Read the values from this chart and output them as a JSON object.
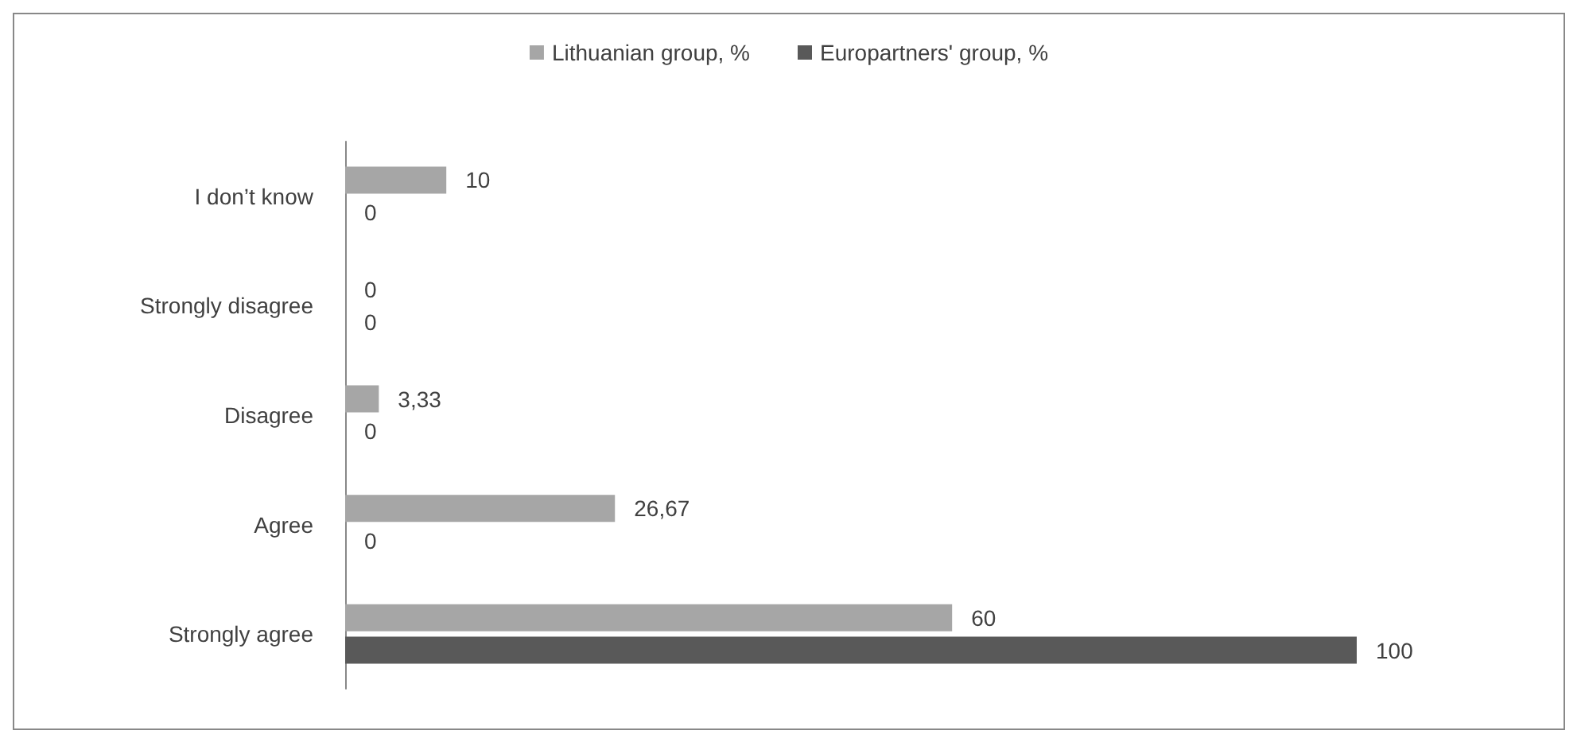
{
  "chart_data": {
    "type": "bar",
    "orientation": "horizontal",
    "categories": [
      "I don’t know",
      "Strongly disagree",
      "Disagree",
      "Agree",
      "Strongly agree"
    ],
    "series": [
      {
        "name": "Lithuanian group, %",
        "color": "#a6a6a6",
        "values": [
          10,
          0,
          3.33,
          26.67,
          60
        ],
        "value_labels": [
          "10",
          "0",
          "3,33",
          "26,67",
          "60"
        ]
      },
      {
        "name": "Europartners' group, %",
        "color": "#595959",
        "values": [
          0,
          0,
          0,
          0,
          100
        ],
        "value_labels": [
          "0",
          "0",
          "0",
          "0",
          "100"
        ]
      }
    ],
    "legend": "top"
  }
}
